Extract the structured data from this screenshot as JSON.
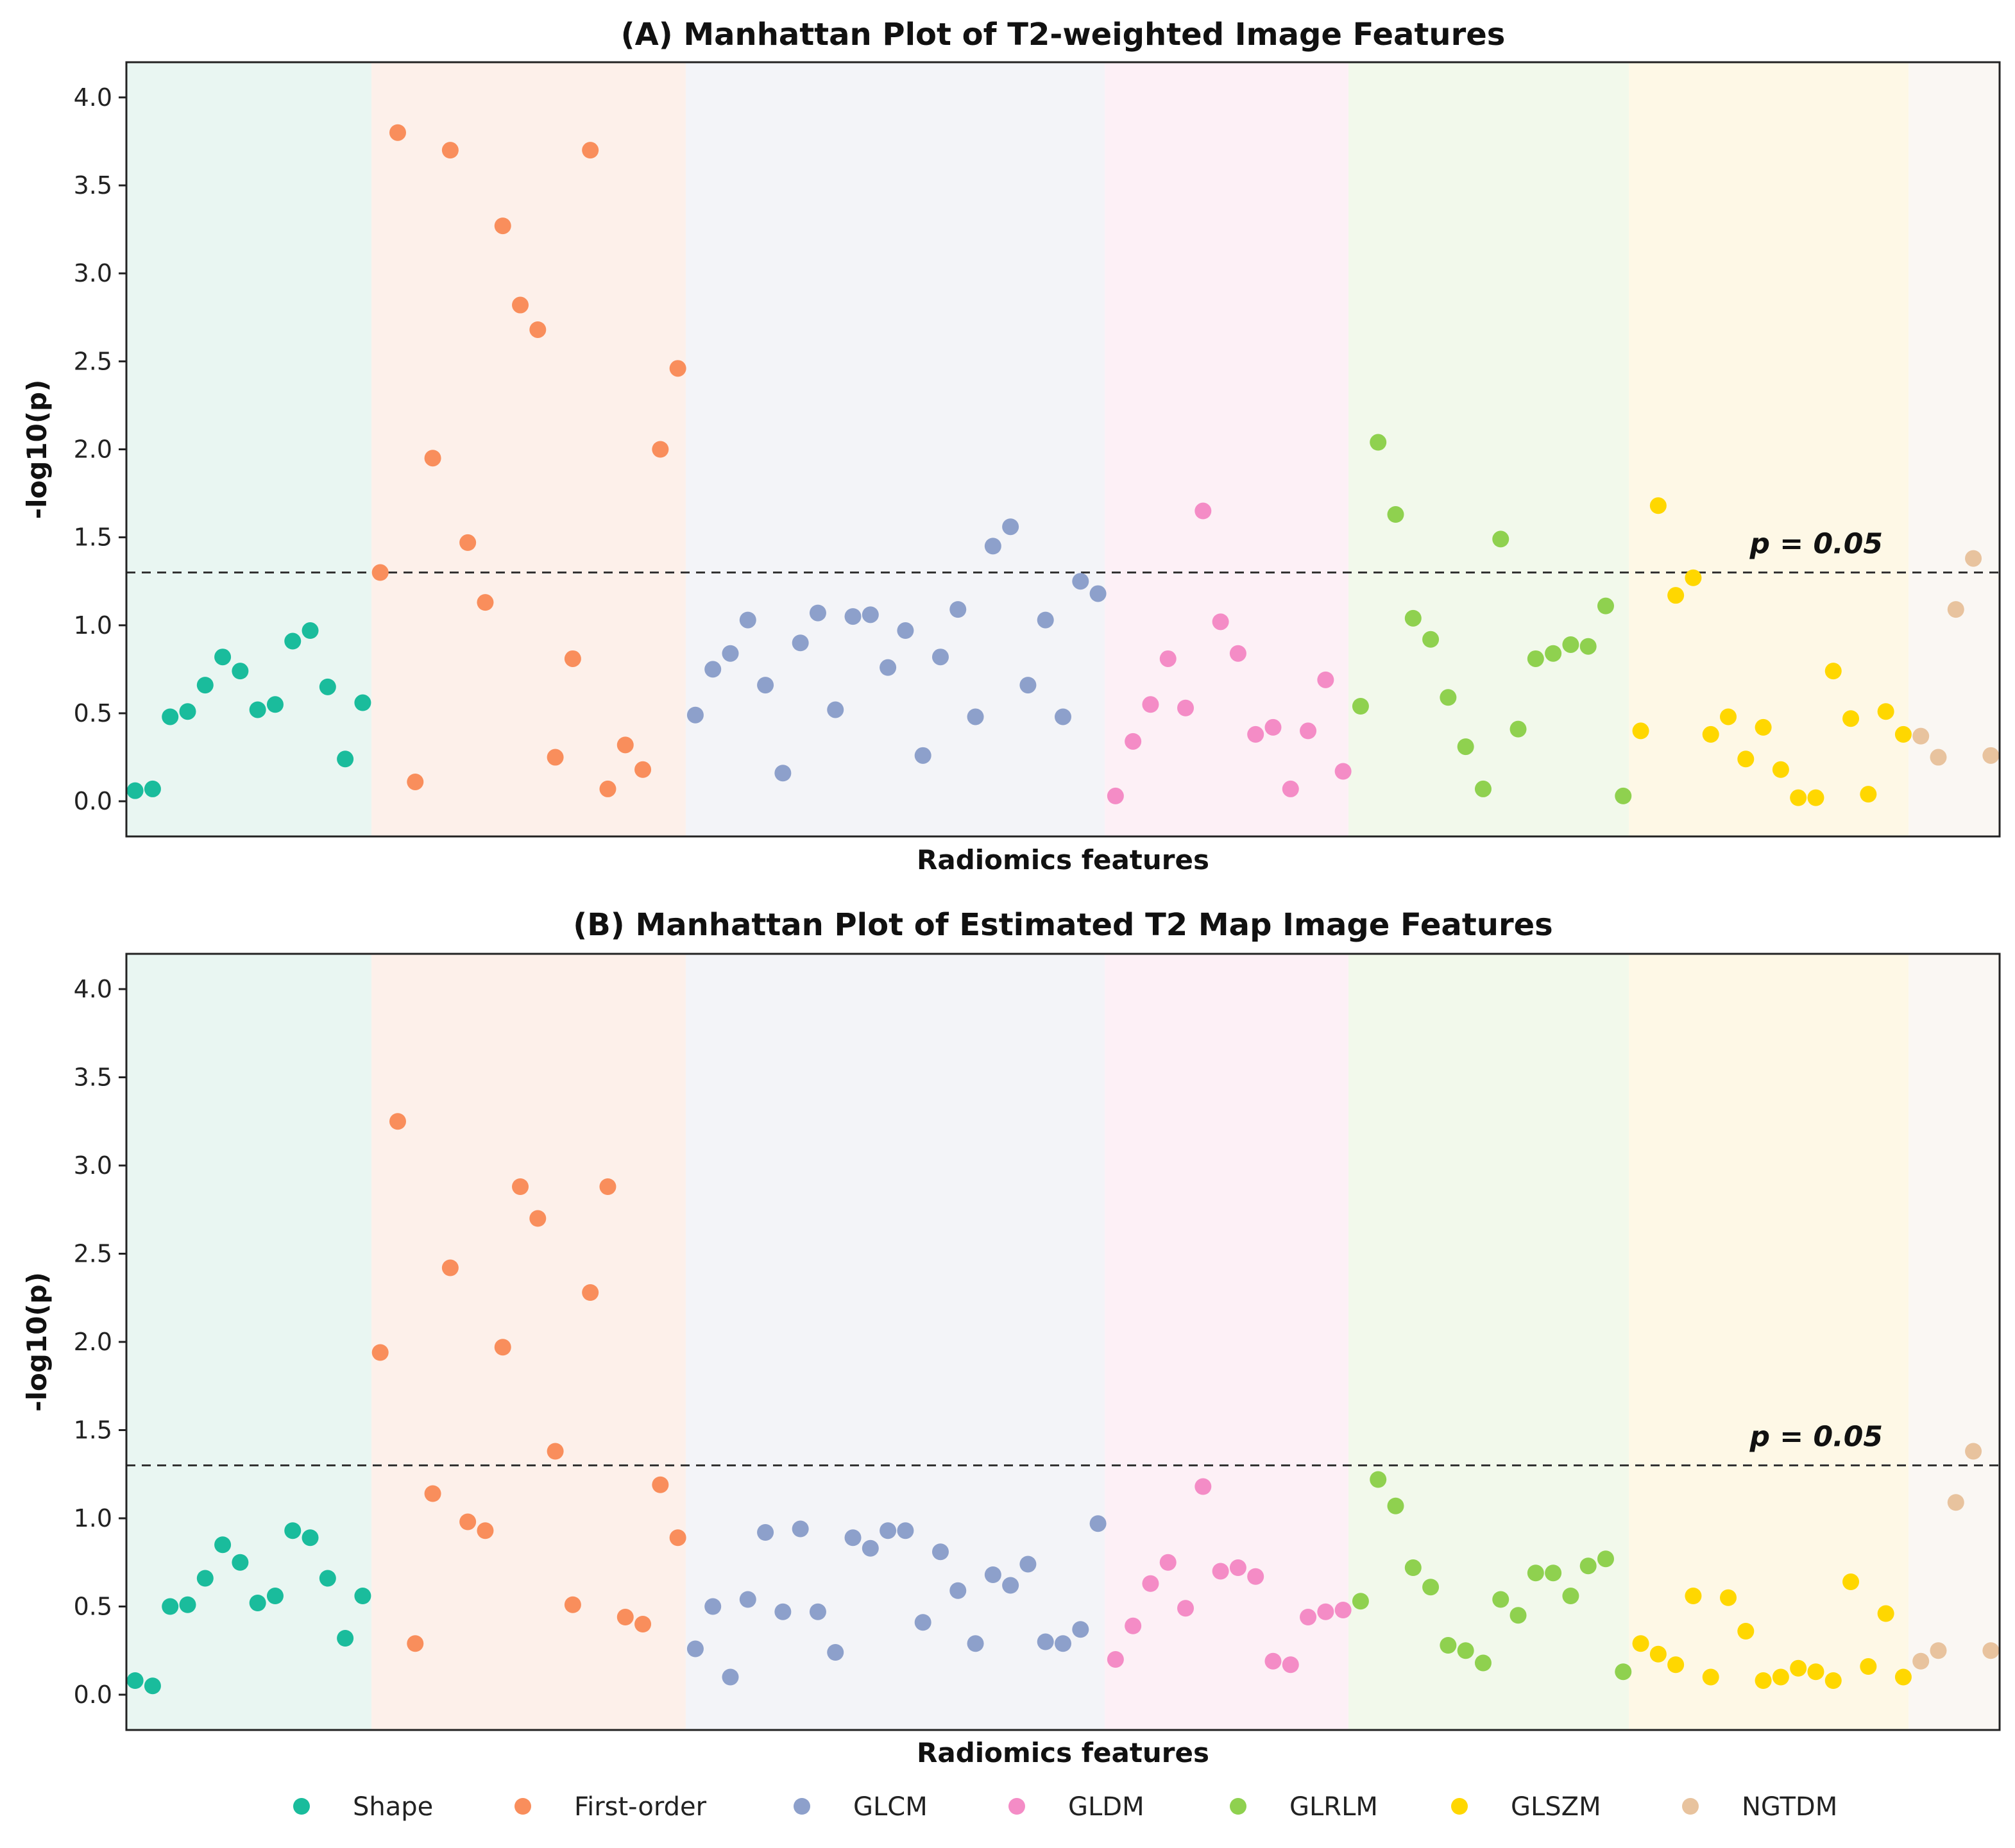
{
  "chart_data": [
    {
      "type": "scatter",
      "title": "(A) Manhattan Plot of T2-weighted Image Features",
      "xlabel": "Radiomics features",
      "ylabel": "-log10(p)",
      "ylim": [
        -0.2,
        4.2
      ],
      "yticks": [
        "0.0",
        "0.5",
        "1.0",
        "1.5",
        "2.0",
        "2.5",
        "3.0",
        "3.5",
        "4.0"
      ],
      "threshold": {
        "value": 1.3,
        "label": "p = 0.05"
      },
      "series": [
        {
          "name": "Shape",
          "values": [
            0.06,
            0.07,
            0.48,
            0.51,
            0.66,
            0.82,
            0.74,
            0.52,
            0.55,
            0.91,
            0.97,
            0.65,
            0.24,
            0.56
          ]
        },
        {
          "name": "First-order",
          "values": [
            1.3,
            3.8,
            0.11,
            1.95,
            3.7,
            1.47,
            1.13,
            3.27,
            2.82,
            2.68,
            0.25,
            0.81,
            3.7,
            0.07,
            0.32,
            0.18,
            2.0,
            2.46
          ]
        },
        {
          "name": "GLCM",
          "values": [
            0.49,
            0.75,
            0.84,
            1.03,
            0.66,
            0.16,
            0.9,
            1.07,
            0.52,
            1.05,
            1.06,
            0.76,
            0.97,
            0.26,
            0.82,
            1.09,
            0.48,
            1.45,
            1.56,
            0.66,
            1.03,
            0.48,
            1.25,
            1.18
          ]
        },
        {
          "name": "GLDM",
          "values": [
            0.03,
            0.34,
            0.55,
            0.81,
            0.53,
            1.65,
            1.02,
            0.84,
            0.38,
            0.42,
            0.07,
            0.4,
            0.69,
            0.17
          ]
        },
        {
          "name": "GLRLM",
          "values": [
            0.54,
            2.04,
            1.63,
            1.04,
            0.92,
            0.59,
            0.31,
            0.07,
            1.49,
            0.41,
            0.81,
            0.84,
            0.89,
            0.88,
            1.11,
            0.03
          ]
        },
        {
          "name": "GLSZM",
          "values": [
            0.4,
            1.68,
            1.17,
            1.27,
            0.38,
            0.48,
            0.24,
            0.42,
            0.18,
            0.02,
            0.02,
            0.74,
            0.47,
            0.04,
            0.51,
            0.38
          ]
        },
        {
          "name": "NGTDM",
          "values": [
            0.37,
            0.25,
            1.09,
            1.38,
            0.26
          ]
        }
      ]
    },
    {
      "type": "scatter",
      "title": "(B) Manhattan Plot of Estimated T2 Map Image Features",
      "xlabel": "Radiomics features",
      "ylabel": "-log10(p)",
      "ylim": [
        -0.2,
        4.2
      ],
      "yticks": [
        "0.0",
        "0.5",
        "1.0",
        "1.5",
        "2.0",
        "2.5",
        "3.0",
        "3.5",
        "4.0"
      ],
      "threshold": {
        "value": 1.3,
        "label": "p = 0.05"
      },
      "series": [
        {
          "name": "Shape",
          "values": [
            0.08,
            0.05,
            0.5,
            0.51,
            0.66,
            0.85,
            0.75,
            0.52,
            0.56,
            0.93,
            0.89,
            0.66,
            0.32,
            0.56
          ]
        },
        {
          "name": "First-order",
          "values": [
            1.94,
            3.25,
            0.29,
            1.14,
            2.42,
            0.98,
            0.93,
            1.97,
            2.88,
            2.7,
            1.38,
            0.51,
            2.28,
            2.88,
            0.44,
            0.4,
            1.19,
            0.89
          ]
        },
        {
          "name": "GLCM",
          "values": [
            0.26,
            0.5,
            0.1,
            0.54,
            0.92,
            0.47,
            0.94,
            0.47,
            0.24,
            0.89,
            0.83,
            0.93,
            0.93,
            0.41,
            0.81,
            0.59,
            0.29,
            0.68,
            0.62,
            0.74,
            0.3,
            0.29,
            0.37,
            0.97
          ]
        },
        {
          "name": "GLDM",
          "values": [
            0.2,
            0.39,
            0.63,
            0.75,
            0.49,
            1.18,
            0.7,
            0.72,
            0.67,
            0.19,
            0.17,
            0.44,
            0.47,
            0.48
          ]
        },
        {
          "name": "GLRLM",
          "values": [
            0.53,
            1.22,
            1.07,
            0.72,
            0.61,
            0.28,
            0.25,
            0.18,
            0.54,
            0.45,
            0.69,
            0.69,
            0.56,
            0.73,
            0.77,
            0.13
          ]
        },
        {
          "name": "GLSZM",
          "values": [
            0.29,
            0.23,
            0.17,
            0.56,
            0.1,
            0.55,
            0.36,
            0.08,
            0.1,
            0.15,
            0.13,
            0.08,
            0.64,
            0.16,
            0.46,
            0.1
          ]
        },
        {
          "name": "NGTDM",
          "values": [
            0.19,
            0.25,
            1.09,
            1.38,
            0.25
          ]
        }
      ]
    }
  ],
  "legend": {
    "placement": "bottom-center",
    "items": [
      {
        "name": "Shape",
        "color": "#1abc9c"
      },
      {
        "name": "First-order",
        "color": "#f98e5c"
      },
      {
        "name": "GLCM",
        "color": "#8da0cb"
      },
      {
        "name": "GLDM",
        "color": "#f48cc6"
      },
      {
        "name": "GLRLM",
        "color": "#8fd14f"
      },
      {
        "name": "GLSZM",
        "color": "#ffd700"
      },
      {
        "name": "NGTDM",
        "color": "#e8c39e"
      }
    ]
  },
  "group_backgrounds": [
    "#e9f6f2",
    "#fdf0ea",
    "#f3f4f8",
    "#fdf0f6",
    "#f2f9eb",
    "#fef8e6",
    "#faf7f3"
  ]
}
